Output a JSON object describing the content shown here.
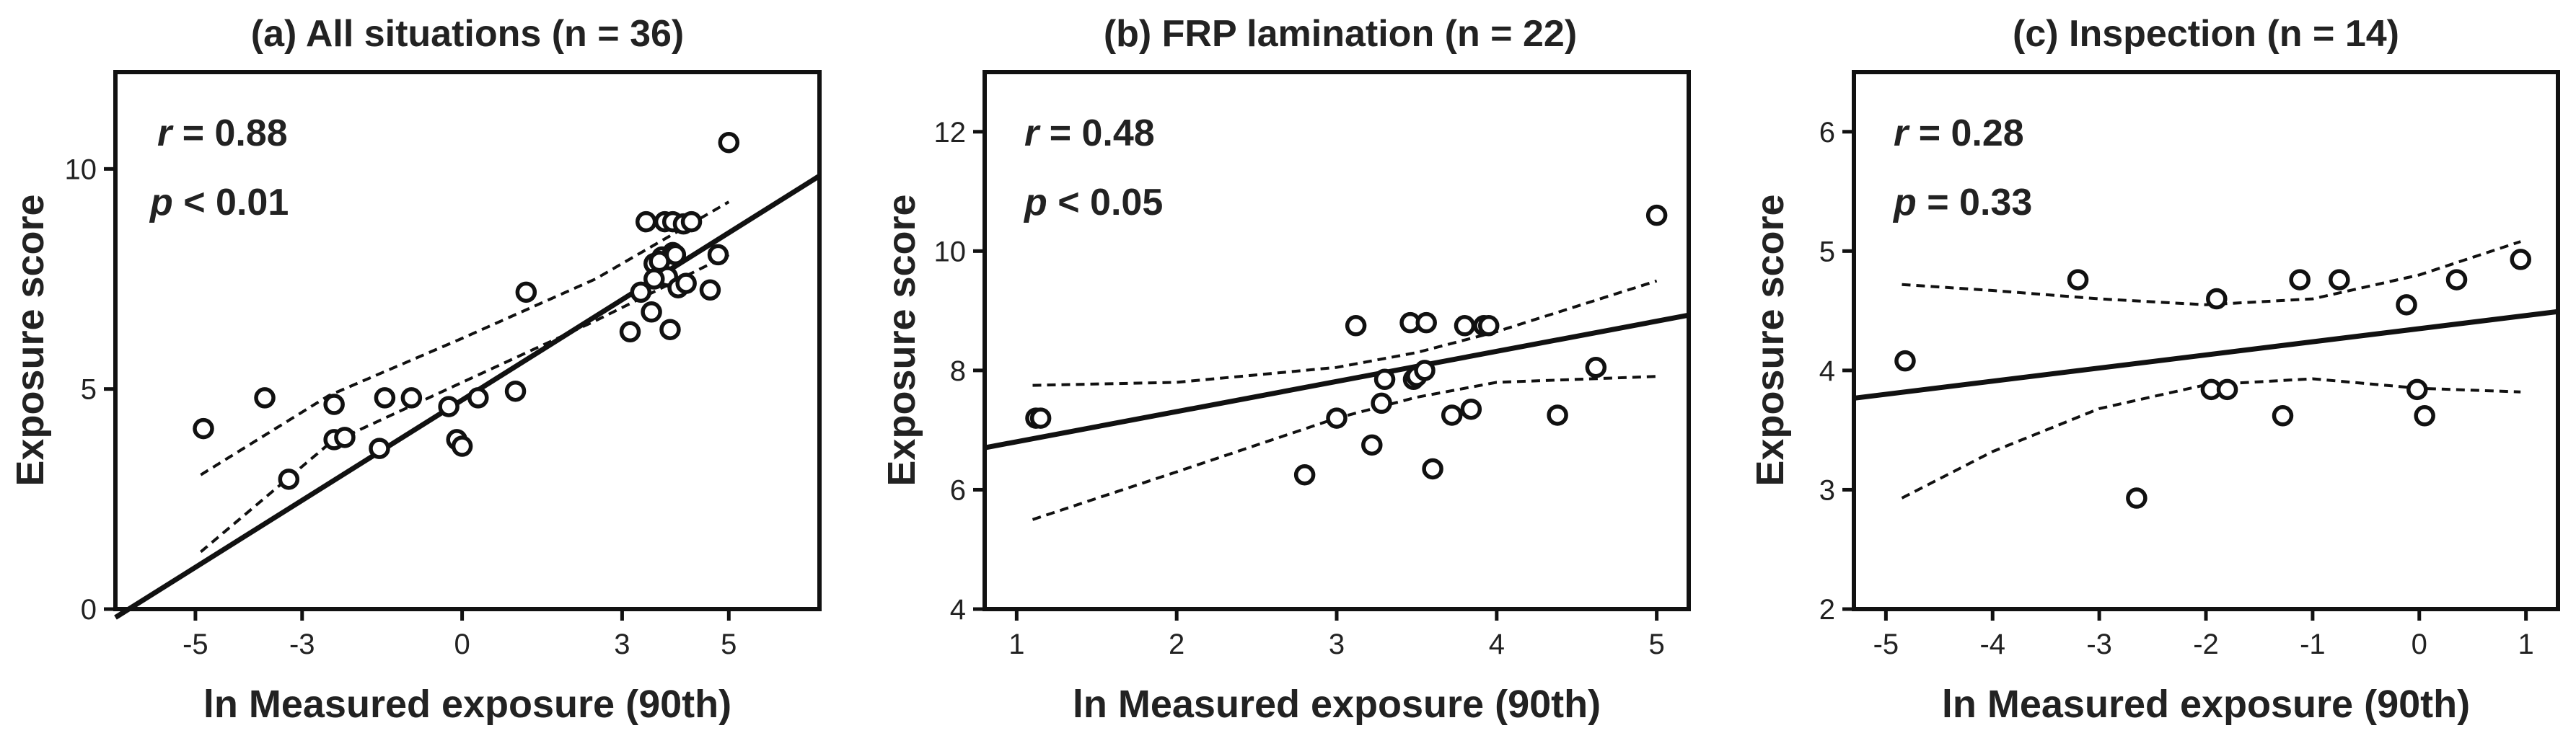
{
  "chart_data": [
    {
      "type": "scatter",
      "title": "(a)  All situations (n = 36)",
      "xlabel": "ln Measured exposure (90th)",
      "ylabel": "Exposure score",
      "xlim": [
        -6.5,
        6.7
      ],
      "ylim": [
        0,
        12.2
      ],
      "xticks": [
        -5,
        -3,
        0,
        3,
        5
      ],
      "yticks": [
        0,
        5,
        10
      ],
      "stats": {
        "r_label": "r",
        "r_value": " = 0.88",
        "p_label": "p",
        "p_value": " < 0.01"
      },
      "fit": {
        "slope": 0.76,
        "intercept": 4.75
      },
      "ci_dashed": {
        "upper": [
          [
            -4.9,
            3.05
          ],
          [
            -2.5,
            4.85
          ],
          [
            0.0,
            6.15
          ],
          [
            2.5,
            7.5
          ],
          [
            5.0,
            9.25
          ]
        ],
        "lower": [
          [
            -4.9,
            1.3
          ],
          [
            -2.5,
            3.75
          ],
          [
            0.0,
            5.15
          ],
          [
            2.5,
            6.55
          ],
          [
            5.0,
            8.05
          ]
        ]
      },
      "points": [
        [
          -4.85,
          4.1
        ],
        [
          -3.7,
          4.8
        ],
        [
          -3.25,
          2.95
        ],
        [
          -2.4,
          4.65
        ],
        [
          -2.4,
          3.85
        ],
        [
          -2.2,
          3.9
        ],
        [
          -1.55,
          3.65
        ],
        [
          -1.45,
          4.8
        ],
        [
          -0.95,
          4.8
        ],
        [
          -0.25,
          4.6
        ],
        [
          -0.1,
          3.85
        ],
        [
          0.0,
          3.7
        ],
        [
          0.3,
          4.8
        ],
        [
          1.0,
          4.95
        ],
        [
          1.2,
          7.2
        ],
        [
          3.15,
          6.3
        ],
        [
          3.35,
          7.2
        ],
        [
          3.45,
          8.8
        ],
        [
          3.55,
          6.75
        ],
        [
          3.6,
          7.85
        ],
        [
          3.75,
          8.0
        ],
        [
          3.8,
          8.8
        ],
        [
          3.85,
          7.55
        ],
        [
          3.9,
          6.35
        ],
        [
          3.95,
          8.1
        ],
        [
          3.95,
          8.8
        ],
        [
          4.05,
          7.3
        ],
        [
          4.15,
          8.75
        ],
        [
          4.2,
          7.4
        ],
        [
          4.3,
          8.8
        ],
        [
          4.65,
          7.25
        ],
        [
          4.8,
          8.05
        ],
        [
          5.0,
          10.6
        ],
        [
          3.7,
          7.9
        ],
        [
          4.0,
          8.05
        ],
        [
          3.6,
          7.5
        ]
      ]
    },
    {
      "type": "scatter",
      "title": "(b)  FRP lamination (n = 22)",
      "xlabel": "ln Measured exposure (90th)",
      "ylabel": "Exposure score",
      "xlim": [
        0.8,
        5.2
      ],
      "ylim": [
        4,
        13
      ],
      "xticks": [
        1,
        2,
        3,
        4,
        5
      ],
      "yticks": [
        4,
        6,
        8,
        10,
        12
      ],
      "stats": {
        "r_label": "r",
        "r_value": " = 0.48",
        "p_label": "p",
        "p_value": " < 0.05"
      },
      "fit": {
        "slope": 0.505,
        "intercept": 6.3
      },
      "ci_dashed": {
        "upper": [
          [
            1.1,
            7.75
          ],
          [
            2.0,
            7.8
          ],
          [
            3.0,
            8.05
          ],
          [
            3.5,
            8.3
          ],
          [
            4.0,
            8.65
          ],
          [
            5.0,
            9.5
          ]
        ],
        "lower": [
          [
            1.1,
            5.5
          ],
          [
            2.0,
            6.3
          ],
          [
            3.0,
            7.2
          ],
          [
            3.5,
            7.55
          ],
          [
            4.0,
            7.8
          ],
          [
            5.0,
            7.9
          ]
        ]
      },
      "points": [
        [
          1.12,
          7.2
        ],
        [
          1.15,
          7.2
        ],
        [
          2.8,
          6.25
        ],
        [
          3.0,
          7.2
        ],
        [
          3.12,
          8.75
        ],
        [
          3.22,
          6.75
        ],
        [
          3.28,
          7.45
        ],
        [
          3.3,
          7.85
        ],
        [
          3.46,
          8.8
        ],
        [
          3.48,
          7.85
        ],
        [
          3.5,
          7.9
        ],
        [
          3.55,
          8.0
        ],
        [
          3.56,
          8.8
        ],
        [
          3.6,
          6.35
        ],
        [
          3.72,
          7.25
        ],
        [
          3.8,
          8.75
        ],
        [
          3.84,
          7.35
        ],
        [
          3.92,
          8.75
        ],
        [
          3.95,
          8.75
        ],
        [
          4.38,
          7.25
        ],
        [
          4.62,
          8.05
        ],
        [
          5.0,
          10.6
        ]
      ]
    },
    {
      "type": "scatter",
      "title": "(c)  Inspection (n = 14)",
      "xlabel": "ln Measured exposure (90th)",
      "ylabel": "Exposure score",
      "xlim": [
        -5.3,
        1.3
      ],
      "ylim": [
        2,
        6.5
      ],
      "xticks": [
        -5,
        -4,
        -3,
        -2,
        -1,
        0,
        1
      ],
      "yticks": [
        2,
        3,
        4,
        5,
        6
      ],
      "stats": {
        "r_label": "r",
        "r_value": " = 0.28",
        "p_label": "p",
        "p_value": " = 0.33"
      },
      "fit": {
        "slope": 0.11,
        "intercept": 4.35
      },
      "ci_dashed": {
        "upper": [
          [
            -4.85,
            4.72
          ],
          [
            -4.0,
            4.67
          ],
          [
            -3.0,
            4.6
          ],
          [
            -2.0,
            4.55
          ],
          [
            -1.0,
            4.6
          ],
          [
            0.0,
            4.8
          ],
          [
            0.95,
            5.08
          ]
        ],
        "lower": [
          [
            -4.85,
            2.93
          ],
          [
            -4.0,
            3.32
          ],
          [
            -3.0,
            3.68
          ],
          [
            -2.0,
            3.88
          ],
          [
            -1.0,
            3.93
          ],
          [
            0.0,
            3.85
          ],
          [
            0.95,
            3.82
          ]
        ]
      },
      "points": [
        [
          -4.82,
          4.08
        ],
        [
          -3.2,
          4.76
        ],
        [
          -2.65,
          2.93
        ],
        [
          -1.95,
          3.84
        ],
        [
          -1.9,
          4.6
        ],
        [
          -1.8,
          3.84
        ],
        [
          -1.28,
          3.62
        ],
        [
          -1.12,
          4.76
        ],
        [
          -0.75,
          4.76
        ],
        [
          -0.12,
          4.55
        ],
        [
          -0.02,
          3.84
        ],
        [
          0.05,
          3.62
        ],
        [
          0.35,
          4.76
        ],
        [
          0.95,
          4.93
        ]
      ]
    }
  ]
}
